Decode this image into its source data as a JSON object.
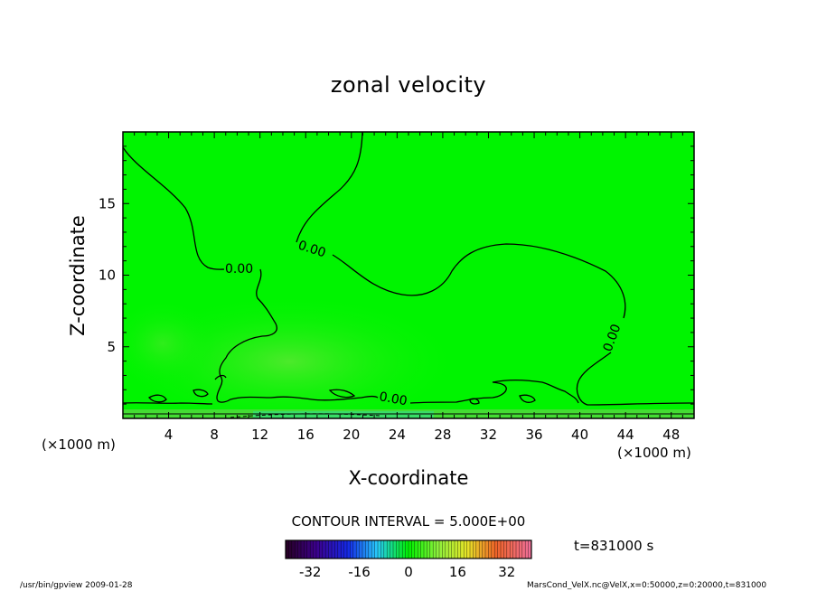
{
  "chart_data": {
    "type": "heatmap",
    "title": "zonal velocity",
    "xlabel": "X-coordinate",
    "ylabel": "Z-coordinate",
    "x_unit": "(×1000 m)",
    "z_unit": "(×1000 m)",
    "xlim": [
      0,
      50
    ],
    "ylim": [
      0,
      20
    ],
    "x_ticks": [
      4,
      8,
      12,
      16,
      20,
      24,
      28,
      32,
      36,
      40,
      44,
      48
    ],
    "y_ticks": [
      5,
      10,
      15
    ],
    "contour_interval_text": "CONTOUR INTERVAL = 5.000E+00",
    "contour_labels": [
      "0.00",
      "0.00",
      "0.00",
      "0.00"
    ],
    "colorbar": {
      "range": [
        -40,
        40
      ],
      "ticks": [
        -32,
        -16,
        0,
        16,
        32
      ]
    },
    "time_text": "t=831000 s",
    "grid": false,
    "colors": {
      "field_main": "#00f400",
      "field_light": "#33ee22",
      "field_bottom": "#44dd33"
    }
  },
  "footer": {
    "left_text": "/usr/bin/gpview  2009-01-28",
    "right_text": "MarsCond_VelX.nc@VelX,x=0:50000,z=0:20000,t=831000"
  }
}
